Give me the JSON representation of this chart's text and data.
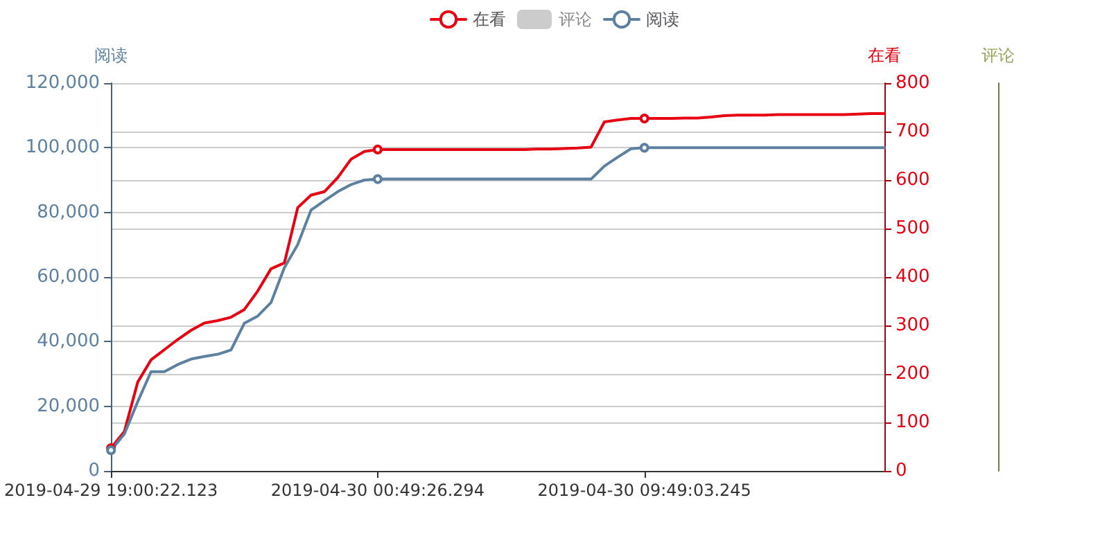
{
  "chart_data": {
    "type": "line",
    "ylabel": "阅读",
    "y2label": "在看",
    "y3label": "评论",
    "categories": [
      "2019-04-29 19:00:22.123",
      null,
      null,
      null,
      null,
      null,
      null,
      null,
      null,
      null,
      null,
      null,
      null,
      null,
      null,
      null,
      null,
      null,
      null,
      null,
      "2019-04-30 00:49:26.294",
      null,
      null,
      null,
      null,
      null,
      null,
      null,
      null,
      null,
      null,
      null,
      null,
      null,
      null,
      null,
      null,
      null,
      null,
      null,
      "2019-04-30 09:49:03.245",
      null,
      null,
      null,
      null,
      null,
      null,
      null,
      null,
      null,
      null,
      null,
      null,
      null,
      null,
      null,
      null,
      null,
      null
    ],
    "series": [
      {
        "name": "在看",
        "color": "#e60012",
        "axis": "y2",
        "values": [
          47,
          81,
          183,
          229,
          250,
          271,
          290,
          305,
          310,
          317,
          333,
          371,
          417,
          429,
          543,
          569,
          576,
          605,
          643,
          659,
          663,
          663,
          663,
          663,
          663,
          663,
          663,
          663,
          663,
          663,
          663,
          663,
          664,
          664,
          665,
          666,
          668,
          720,
          724,
          727,
          727,
          727,
          727,
          728,
          728,
          730,
          733,
          734,
          734,
          734,
          735,
          735,
          735,
          735,
          735,
          735,
          736,
          737,
          737
        ]
      },
      {
        "name": "评论",
        "color": "#cccccc",
        "values": [
          null,
          null,
          null,
          null,
          null,
          null,
          null,
          null,
          null,
          null,
          null,
          null,
          null,
          null,
          null,
          null,
          null,
          null,
          null,
          null,
          null,
          null,
          null,
          null,
          null,
          null,
          null,
          null,
          null,
          null,
          null,
          null,
          null,
          null,
          null,
          null,
          null,
          null,
          null,
          null,
          null,
          null,
          null,
          null,
          null,
          null,
          null,
          null,
          null,
          null,
          null,
          null,
          null,
          null,
          null,
          null,
          null,
          null,
          null
        ]
      },
      {
        "name": "阅读",
        "color": "#5d80a0",
        "values": [
          6400,
          11400,
          21400,
          30700,
          30700,
          32900,
          34600,
          35400,
          36100,
          37400,
          45700,
          47900,
          52100,
          62900,
          70000,
          80700,
          83600,
          86400,
          88600,
          90000,
          90300,
          90300,
          90300,
          90300,
          90300,
          90300,
          90300,
          90300,
          90300,
          90300,
          90300,
          90300,
          90300,
          90300,
          90300,
          90300,
          90300,
          94300,
          97100,
          99700,
          100000,
          100000,
          100000,
          100000,
          100000,
          100000,
          100000,
          100000,
          100000,
          100000,
          100000,
          100000,
          100000,
          100000,
          100000,
          100000,
          100000,
          100000,
          100000
        ]
      }
    ],
    "ylim": [
      0,
      120000
    ],
    "yticks": [
      0,
      {
        "value": 20000,
        "label": "20,000"
      },
      {
        "value": 40000,
        "label": "40,000"
      },
      {
        "value": 60000,
        "label": "60,000"
      },
      {
        "value": 80000,
        "label": "80,000"
      },
      {
        "value": 100000,
        "label": "100,000"
      },
      {
        "value": 120000,
        "label": "120,000"
      }
    ],
    "y2lim": [
      0,
      800
    ],
    "y2ticks": [
      0,
      100,
      200,
      300,
      400,
      500,
      600,
      700,
      800
    ],
    "grid": "y",
    "legend": "top",
    "line_style": "solid"
  }
}
